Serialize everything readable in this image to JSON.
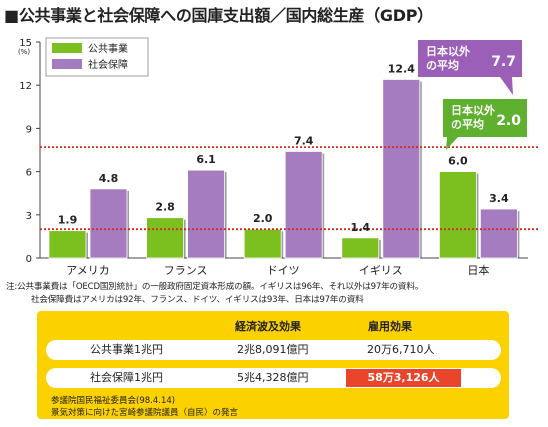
{
  "title": "■公共事業と社会保障への国庫支出額／国内総生産（GDP）",
  "chart_data": {
    "type": "bar",
    "categories": [
      "アメリカ",
      "フランス",
      "ドイツ",
      "イギリス",
      "日本"
    ],
    "series": [
      {
        "name": "公共事業",
        "values": [
          1.9,
          2.8,
          2.0,
          1.4,
          6.0
        ],
        "color": "#7cc020"
      },
      {
        "name": "社会保障",
        "values": [
          4.8,
          6.1,
          7.4,
          12.4,
          3.4
        ],
        "color": "#a47cbf"
      }
    ],
    "value_labels": {
      "公共事業": [
        "1.9",
        "2.8",
        "2.0",
        "1.4",
        "6.0"
      ],
      "社会保障": [
        "4.8",
        "6.1",
        "7.4",
        "12.4",
        "3.4"
      ]
    },
    "ylim": [
      0,
      15
    ],
    "yticks": [
      "0",
      "3",
      "6",
      "9",
      "12",
      "15"
    ],
    "ylabel": "(%)",
    "grid": false,
    "legend": "top-left",
    "reference_lines": [
      {
        "value": 7.7,
        "label_line1": "日本以外",
        "label_line2": "の平均",
        "value_label": "7.7",
        "color": "#9b5fb8"
      },
      {
        "value": 2.0,
        "label_line1": "日本以外",
        "label_line2": "の平均",
        "value_label": "2.0",
        "color": "#60b030"
      }
    ],
    "reference_line_color": "#d42a1e"
  },
  "notes": [
    "注:公共事業費は「OECD国別統計」の一般政府固定資本形成の額。イギリスは96年、それ以外は97年の資料。",
    "社会保障費はアメリカは92年、フランス、ドイツ、イギリスは93年、日本は97年の資料"
  ],
  "panel": {
    "headers": [
      "経済波及効果",
      "雇用効果"
    ],
    "rows": [
      {
        "label": "公共事業1兆円",
        "effect": "2兆8,091億円",
        "jobs": "20万6,710人"
      },
      {
        "label": "社会保障1兆円",
        "effect": "5兆4,328億円",
        "jobs": "58万3,126人"
      }
    ],
    "highlight_color": "#e8452a",
    "source": [
      "参議院国民福祉委員会(98.4.14)",
      "景気対策に向けた宮崎参議院議員（自民）の発言"
    ]
  }
}
